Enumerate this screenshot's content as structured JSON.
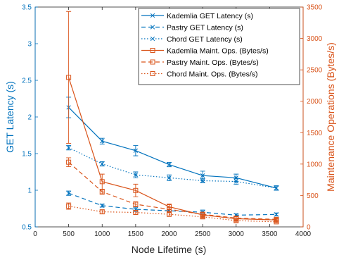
{
  "chart_data": {
    "type": "line",
    "title": "",
    "xlabel": "Node Lifetime (s)",
    "ylabel_left": "GET Latency (s)",
    "ylabel_right": "Maintenance Operations (Bytes/s)",
    "xlim": [
      0,
      4000
    ],
    "xticks": [
      0,
      500,
      1000,
      1500,
      2000,
      2500,
      3000,
      3500,
      4000
    ],
    "ylim_left": [
      0.5,
      3.5
    ],
    "yticks_left": [
      0.5,
      1,
      1.5,
      2,
      2.5,
      3,
      3.5
    ],
    "ylim_right": [
      0,
      3500
    ],
    "yticks_right": [
      0,
      500,
      1000,
      1500,
      2000,
      2500,
      3000,
      3500
    ],
    "grid": false,
    "legend_position": "top-right",
    "colors": {
      "left_axis": "#0072BD",
      "right_axis": "#D95319"
    },
    "x": [
      500,
      1000,
      1500,
      2000,
      2500,
      3000,
      3600
    ],
    "series": [
      {
        "name": "Kademlia GET Latency (s)",
        "axis": "left",
        "color": "#0072BD",
        "line": "solid",
        "marker": "x",
        "values": [
          2.13,
          1.67,
          1.54,
          1.35,
          1.2,
          1.17,
          1.03
        ],
        "errors": [
          0.14,
          0.04,
          0.07,
          0.03,
          0.06,
          0.05,
          0.03
        ]
      },
      {
        "name": "Pastry GET Latency (s)",
        "axis": "left",
        "color": "#0072BD",
        "line": "dashed",
        "marker": "x",
        "values": [
          0.96,
          0.79,
          0.74,
          0.72,
          0.7,
          0.66,
          0.67
        ],
        "errors": [
          0.03,
          0.02,
          0.03,
          0.02,
          0.03,
          0.02,
          0.02
        ]
      },
      {
        "name": "Chord GET Latency (s)",
        "axis": "left",
        "color": "#0072BD",
        "line": "dotted",
        "marker": "x",
        "values": [
          1.58,
          1.36,
          1.21,
          1.17,
          1.13,
          1.12,
          1.03
        ],
        "errors": [
          0.03,
          0.03,
          0.04,
          0.04,
          0.03,
          0.04,
          0.03
        ]
      },
      {
        "name": "Kademlia Maint. Ops. (Bytes/s)",
        "axis": "right",
        "color": "#D95319",
        "line": "solid",
        "marker": "square",
        "values": [
          2380,
          720,
          580,
          320,
          190,
          130,
          110
        ],
        "errors": [
          1050,
          120,
          100,
          45,
          45,
          30,
          20
        ]
      },
      {
        "name": "Pastry Maint. Ops. (Bytes/s)",
        "axis": "right",
        "color": "#D95319",
        "line": "dashed",
        "marker": "square",
        "values": [
          1030,
          560,
          360,
          280,
          200,
          140,
          120
        ],
        "errors": [
          70,
          40,
          40,
          30,
          20,
          20,
          20
        ]
      },
      {
        "name": "Chord Maint. Ops. (Bytes/s)",
        "axis": "right",
        "color": "#D95319",
        "line": "dotted",
        "marker": "square",
        "values": [
          330,
          240,
          230,
          200,
          160,
          100,
          80
        ],
        "errors": [
          50,
          30,
          30,
          25,
          20,
          20,
          15
        ]
      }
    ]
  }
}
